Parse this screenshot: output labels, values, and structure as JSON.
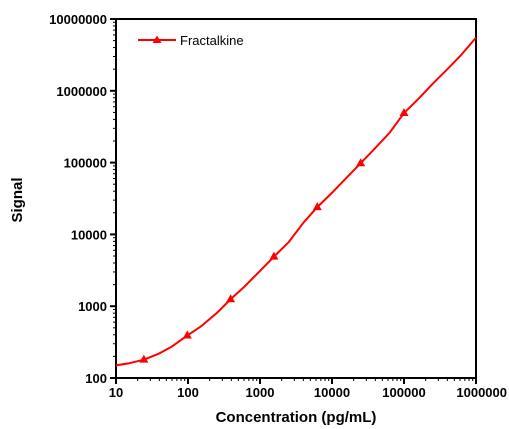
{
  "chart_data": {
    "type": "line",
    "xlabel": "Concentration (pg/mL)",
    "ylabel": "Signal",
    "x_scale": "log",
    "y_scale": "log",
    "xlim": [
      10,
      1000000
    ],
    "ylim": [
      100,
      10000000
    ],
    "x_ticks": [
      "10",
      "100",
      "1000",
      "10000",
      "100000",
      "1000000"
    ],
    "y_ticks": [
      "100",
      "1000",
      "10000",
      "100000",
      "1000000",
      "10000000"
    ],
    "legend": {
      "position": "top-left"
    },
    "grid": false,
    "series": [
      {
        "name": "Fractalkine",
        "color": "#ff0000",
        "marker": "triangle",
        "x": [
          24.4,
          97.7,
          390.6,
          1562.5,
          6250,
          25000,
          100000
        ],
        "y": [
          180,
          390,
          1250,
          4900,
          24000,
          98000,
          490000
        ],
        "fit_x": [
          10,
          15,
          24.4,
          40,
          60,
          97.7,
          150,
          250,
          390.6,
          600,
          1000,
          1562.5,
          2500,
          4000,
          6250,
          10000,
          16000,
          25000,
          40000,
          63000,
          100000,
          160000,
          250000,
          400000,
          630000,
          1000000
        ],
        "fit_y": [
          150,
          160,
          180,
          220,
          275,
          390,
          520,
          800,
          1250,
          1850,
          3100,
          4900,
          7800,
          14500,
          24000,
          38000,
          62000,
          98000,
          160000,
          260000,
          490000,
          780000,
          1250000,
          2000000,
          3200000,
          5500000
        ]
      }
    ]
  }
}
